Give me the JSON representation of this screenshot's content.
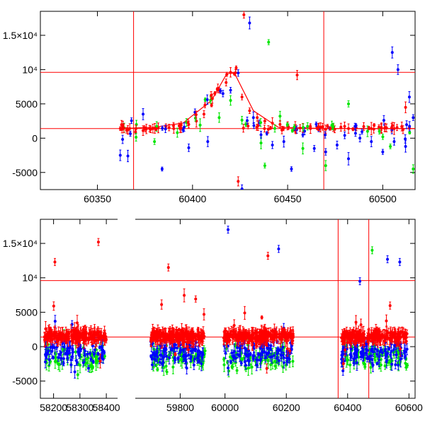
{
  "chart_data": [
    {
      "type": "scatter",
      "panel": "top",
      "xlim": [
        60320,
        60517
      ],
      "ylim": [
        -7500,
        18500
      ],
      "xticks": [
        "60350",
        "60400",
        "60450",
        "60500"
      ],
      "xtick_values": [
        60350,
        60400,
        60450,
        60500
      ],
      "yticks": [
        "-5000",
        "0",
        "5000",
        "10⁴",
        "1.5×10⁴"
      ],
      "ytick_values": [
        -5000,
        0,
        5000,
        10000,
        15000
      ],
      "grid": false,
      "hlines": [
        9600,
        1400
      ],
      "vlines": [
        60369,
        60469
      ],
      "fit_line": {
        "x": [
          60362,
          60380,
          60395,
          60410,
          60418,
          60422,
          60432,
          60445,
          60470,
          60517
        ],
        "y": [
          1400,
          1600,
          2200,
          5500,
          9400,
          9500,
          4000,
          1600,
          1400,
          1400
        ]
      },
      "series": [
        {
          "color": "#ff0000",
          "x": [
            60362,
            60366,
            60370,
            60374,
            60378,
            60382,
            60386,
            60390,
            60394,
            60398,
            60402,
            60406,
            60410,
            60414,
            60418,
            60420,
            60422,
            60426,
            60430,
            60434,
            60438,
            60442,
            60446,
            60450,
            60454,
            60458,
            60462,
            60466,
            60470,
            60474,
            60478,
            60482,
            60486,
            60490,
            60494,
            60498,
            60502,
            60506,
            60510,
            60514,
            60424,
            60455,
            60427,
            60512
          ],
          "y": [
            1400,
            1200,
            900,
            1100,
            1300,
            1500,
            1700,
            1800,
            1900,
            2000,
            2500,
            3500,
            4800,
            7000,
            9300,
            9600,
            9400,
            6000,
            4000,
            3000,
            2500,
            2200,
            2000,
            1800,
            1600,
            1500,
            1400,
            1400,
            1300,
            1500,
            1600,
            1400,
            1500,
            1700,
            1400,
            1600,
            1500,
            1400,
            1700,
            1500,
            -6300,
            9200,
            18000,
            4500
          ]
        },
        {
          "color": "#00e600",
          "x": [
            60364,
            60380,
            60392,
            60404,
            60414,
            60420,
            60428,
            60436,
            60446,
            60458,
            60470,
            60482,
            60492,
            60504,
            60516,
            60440,
            60438
          ],
          "y": [
            1500,
            -500,
            800,
            1900,
            3000,
            5500,
            2000,
            -700,
            3200,
            -1500,
            -4000,
            5000,
            1000,
            -1200,
            -4500,
            14000,
            -4000
          ]
        },
        {
          "color": "#0000ff",
          "x": [
            60362,
            60366,
            60374,
            60384,
            60398,
            60408,
            60416,
            60420,
            60424,
            60430,
            60432,
            60436,
            60442,
            60448,
            60452,
            60458,
            60464,
            60470,
            60476,
            60482,
            60488,
            60494,
            60500,
            60506,
            60512,
            60514,
            60516,
            60426,
            60505,
            60508
          ],
          "y": [
            -2500,
            -2600,
            3500,
            -4500,
            -1400,
            -500,
            6500,
            7000,
            9500,
            16800,
            3000,
            500,
            -1000,
            -500,
            -4500,
            500,
            -1500,
            -2000,
            -1000,
            -3000,
            0,
            -500,
            -2000,
            -500,
            -1200,
            6000,
            3000,
            -7400,
            12500,
            10000
          ]
        }
      ]
    },
    {
      "type": "scatter",
      "panel": "bottom",
      "segments": [
        {
          "xlim": [
            58150,
            58440
          ],
          "xticks": [
            "58200",
            "58300",
            "58400"
          ],
          "xtick_values": [
            58200,
            58300,
            58400
          ]
        },
        {
          "xlim": [
            59650,
            59900
          ],
          "xticks": [
            "59800"
          ],
          "xtick_values": [
            59800
          ]
        },
        {
          "xlim": [
            59950,
            60620
          ],
          "xticks": [
            "60000",
            "60200",
            "60400",
            "60600"
          ],
          "xtick_values": [
            60000,
            60200,
            60400,
            60600
          ]
        }
      ],
      "ylim": [
        -7500,
        18500
      ],
      "yticks": [
        "-5000",
        "0",
        "5000",
        "10⁴",
        "1.5×10⁴"
      ],
      "ytick_values": [
        -5000,
        0,
        5000,
        10000,
        15000
      ],
      "grid": false,
      "hlines": [
        9600,
        1400
      ],
      "vlines": [
        60369,
        60469
      ],
      "clusters": [
        {
          "x": [
            58165,
            58400
          ],
          "n_red": 210,
          "n_blue": 80,
          "n_green": 60
        },
        {
          "x": [
            59700,
            59885
          ],
          "n_red": 220,
          "n_blue": 90,
          "n_green": 70
        },
        {
          "x": [
            59995,
            60225
          ],
          "n_red": 240,
          "n_blue": 100,
          "n_green": 80
        },
        {
          "x": [
            60380,
            60595
          ],
          "n_red": 230,
          "n_blue": 100,
          "n_green": 80
        }
      ],
      "highlights": [
        {
          "color": "#ff0000",
          "x": 58370,
          "y": 15200
        },
        {
          "color": "#ff0000",
          "x": 58205,
          "y": 12300
        },
        {
          "color": "#ff0000",
          "x": 59760,
          "y": 11500
        },
        {
          "color": "#0000ff",
          "x": 60010,
          "y": 17000
        },
        {
          "color": "#0000ff",
          "x": 60175,
          "y": 14200
        },
        {
          "color": "#ff0000",
          "x": 60140,
          "y": 13200
        },
        {
          "color": "#0000ff",
          "x": 60530,
          "y": 12700
        },
        {
          "color": "#0000ff",
          "x": 60570,
          "y": 12300
        },
        {
          "color": "#00e600",
          "x": 60480,
          "y": 14000
        },
        {
          "color": "#0000ff",
          "x": 60440,
          "y": 9500
        }
      ]
    }
  ]
}
